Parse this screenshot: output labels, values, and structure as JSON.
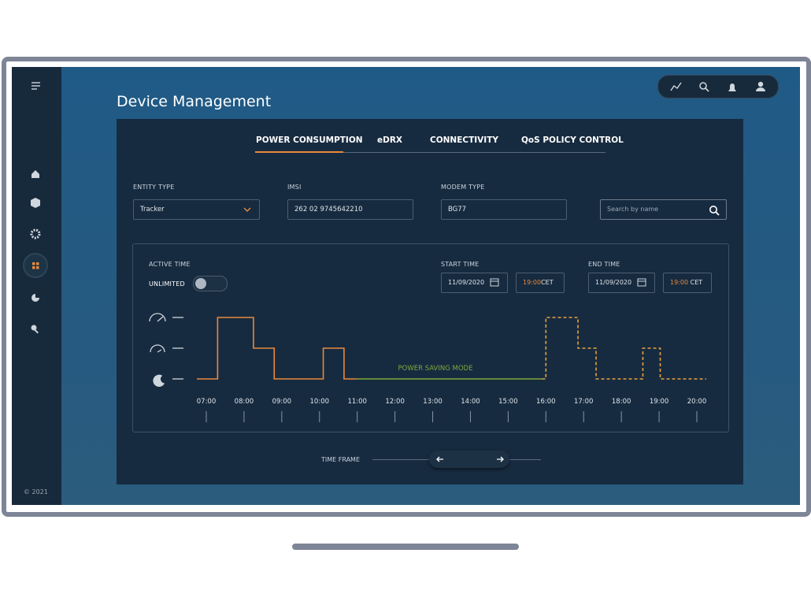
{
  "sidebar": {
    "copyright": "© 2021"
  },
  "header": {
    "title": "Device Management"
  },
  "tabs": [
    "POWER CONSUMPTION",
    "eDRX",
    "CONNECTIVITY",
    "QoS POLICY CONTROL"
  ],
  "filters": {
    "entity_type": {
      "label": "ENTITY TYPE",
      "value": "Tracker"
    },
    "imsi": {
      "label": "IMSI",
      "value": "262 02 9745642210"
    },
    "modem_type": {
      "label": "MODEM TYPE",
      "value": "BG77"
    },
    "search": {
      "placeholder": "Search by name"
    }
  },
  "panel": {
    "active_time_label": "ACTIVE TIME",
    "unlimited_label": "UNLIMITED",
    "start_time": {
      "label": "START TIME",
      "date": "11/09/2020",
      "time": "19:00",
      "zone": "CET"
    },
    "end_time": {
      "label": "END TIME",
      "date": "11/09/2020",
      "time": "19:00",
      "zone": "CET"
    }
  },
  "chart": {
    "type": "step",
    "annotation": "POWER SAVING MODE",
    "ylim": [
      0,
      2
    ],
    "xticks": [
      {
        "value": 7,
        "label": "07:00"
      },
      {
        "value": 8,
        "label": "08:00"
      },
      {
        "value": 9,
        "label": "09:00"
      },
      {
        "value": 10,
        "label": "10:00"
      },
      {
        "value": 11,
        "label": "11:00"
      },
      {
        "value": 12,
        "label": "12:00"
      },
      {
        "value": 13,
        "label": "13:00"
      },
      {
        "value": 14,
        "label": "14:00"
      },
      {
        "value": 15,
        "label": "15:00"
      },
      {
        "value": 16,
        "label": "16:00"
      },
      {
        "value": 17,
        "label": "17:00"
      },
      {
        "value": 18,
        "label": "18:00"
      },
      {
        "value": 19,
        "label": "19:00"
      },
      {
        "value": 20,
        "label": "20:00"
      }
    ],
    "series": [
      {
        "color": "#e9893a",
        "dashed": false,
        "x": [
          6.75,
          7.3,
          7.3,
          8.25,
          8.25,
          8.8,
          8.8,
          10.1,
          10.1,
          10.65,
          10.65,
          11
        ],
        "values": [
          0,
          0,
          2,
          2,
          1,
          1,
          0,
          0,
          1,
          1,
          0,
          0
        ]
      },
      {
        "color": "#7fa83a",
        "dashed": false,
        "x": [
          11,
          15.9
        ],
        "values": [
          0,
          0
        ]
      },
      {
        "color": "#e9a13a",
        "dashed": true,
        "x": [
          15.9,
          16,
          16,
          16.85,
          16.85,
          17.33,
          17.33,
          18.57,
          18.57,
          19.03,
          19.03,
          20.25
        ],
        "values": [
          0,
          0,
          2,
          2,
          1,
          1,
          0,
          0,
          1,
          1,
          0,
          0
        ]
      }
    ]
  },
  "time_frame": {
    "label": "TIME FRAME"
  }
}
